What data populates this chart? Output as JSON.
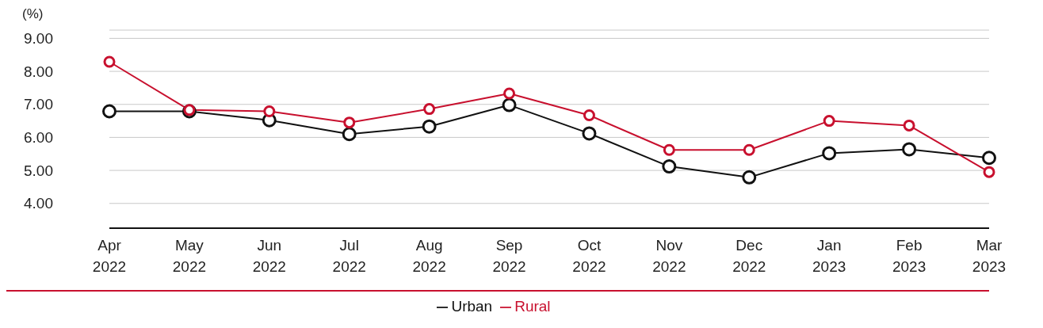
{
  "chart_data": {
    "type": "line",
    "ylabel": "(%)",
    "categories": [
      "Apr 2022",
      "May 2022",
      "Jun 2022",
      "Jul 2022",
      "Aug 2022",
      "Sep 2022",
      "Oct 2022",
      "Nov 2022",
      "Dec 2022",
      "Jan 2023",
      "Feb 2023",
      "Mar 2023"
    ],
    "series": [
      {
        "name": "Urban",
        "color": "#111111",
        "values": [
          6.79,
          6.79,
          6.52,
          6.1,
          6.33,
          6.98,
          6.12,
          5.12,
          4.79,
          5.52,
          5.64,
          5.38
        ]
      },
      {
        "name": "Rural",
        "color": "#c8102e",
        "values": [
          8.29,
          6.83,
          6.79,
          6.45,
          6.86,
          7.33,
          6.67,
          5.62,
          5.62,
          6.5,
          6.36,
          4.95
        ]
      }
    ],
    "ylim": [
      3.25,
      9.25
    ],
    "yticks": [
      {
        "value": 4,
        "label": "4.00"
      },
      {
        "value": 5,
        "label": "5.00"
      },
      {
        "value": 6,
        "label": "6.00"
      },
      {
        "value": 7,
        "label": "7.00"
      },
      {
        "value": 8,
        "label": "8.00"
      },
      {
        "value": 9,
        "label": "9.00"
      }
    ],
    "grid": "y",
    "legend": "bottom",
    "marker": "circle",
    "line_style": "solid"
  }
}
